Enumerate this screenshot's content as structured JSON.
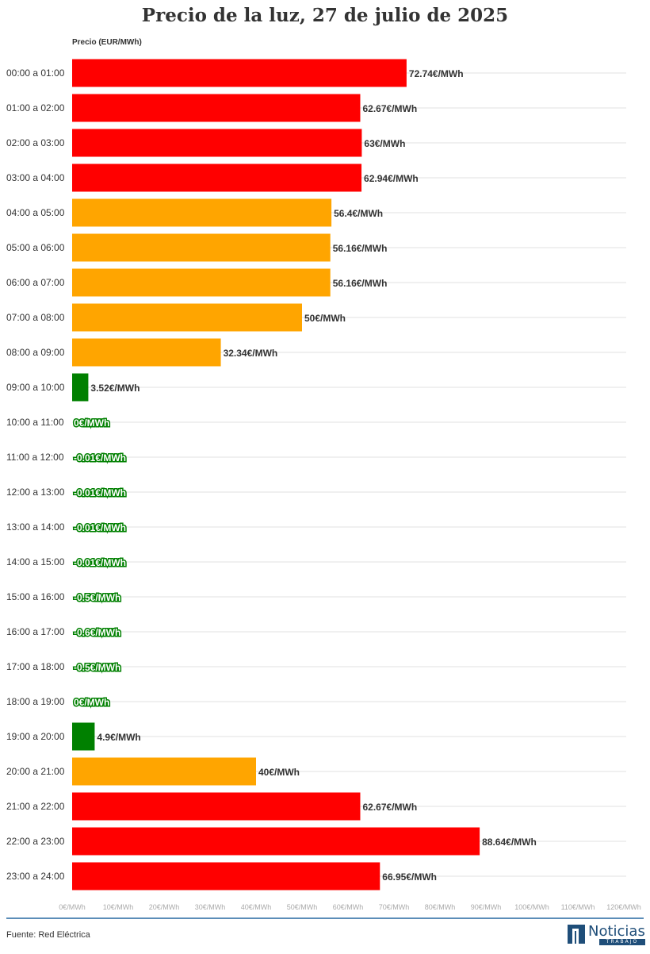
{
  "title": "Precio de la luz, 27 de julio de 2025",
  "source": "Fuente: Red Eléctrica",
  "logo": {
    "name": "Noticias",
    "sub": "TRABAJO"
  },
  "colors": {
    "high": "#ff0000",
    "medium": "#ffa500",
    "low": "#008000",
    "grid": "#e0e0e0",
    "axis_text": "#aaaaaa",
    "text": "#333333"
  },
  "chart_data": {
    "type": "bar",
    "orientation": "horizontal",
    "ylabel": "Precio (EUR/MWh)",
    "xlim": [
      0,
      120
    ],
    "xticks": [
      "0€/MWh",
      "10€/MWh",
      "20€/MWh",
      "30€/MWh",
      "40€/MWh",
      "50€/MWh",
      "60€/MWh",
      "70€/MWh",
      "80€/MWh",
      "90€/MWh",
      "100€/MWh",
      "110€/MWh",
      "120€/MWh"
    ],
    "grid": true,
    "categories": [
      "00:00 a 01:00",
      "01:00 a 02:00",
      "02:00 a 03:00",
      "03:00 a 04:00",
      "04:00 a 05:00",
      "05:00 a 06:00",
      "06:00 a 07:00",
      "07:00 a 08:00",
      "08:00 a 09:00",
      "09:00 a 10:00",
      "10:00 a 11:00",
      "11:00 a 12:00",
      "12:00 a 13:00",
      "13:00 a 14:00",
      "14:00 a 15:00",
      "15:00 a 16:00",
      "16:00 a 17:00",
      "17:00 a 18:00",
      "18:00 a 19:00",
      "19:00 a 20:00",
      "20:00 a 21:00",
      "21:00 a 22:00",
      "22:00 a 23:00",
      "23:00 a 24:00"
    ],
    "values": [
      72.74,
      62.67,
      63,
      62.94,
      56.4,
      56.16,
      56.16,
      50,
      32.34,
      3.52,
      0,
      -0.01,
      -0.01,
      -0.01,
      -0.01,
      -0.5,
      -0.6,
      -0.5,
      0,
      4.9,
      40,
      62.67,
      88.64,
      66.95
    ],
    "labels": [
      "72.74€/MWh",
      "62.67€/MWh",
      "63€/MWh",
      "62.94€/MWh",
      "56.4€/MWh",
      "56.16€/MWh",
      "56.16€/MWh",
      "50€/MWh",
      "32.34€/MWh",
      "3.52€/MWh",
      "0€/MWh",
      "-0.01€/MWh",
      "-0.01€/MWh",
      "-0.01€/MWh",
      "-0.01€/MWh",
      "-0.5€/MWh",
      "-0.6€/MWh",
      "-0.5€/MWh",
      "0€/MWh",
      "4.9€/MWh",
      "40€/MWh",
      "62.67€/MWh",
      "88.64€/MWh",
      "66.95€/MWh"
    ],
    "bar_colors": [
      "high",
      "high",
      "high",
      "high",
      "medium",
      "medium",
      "medium",
      "medium",
      "medium",
      "low",
      "low",
      "low",
      "low",
      "low",
      "low",
      "low",
      "low",
      "low",
      "low",
      "low",
      "medium",
      "high",
      "high",
      "high"
    ]
  }
}
